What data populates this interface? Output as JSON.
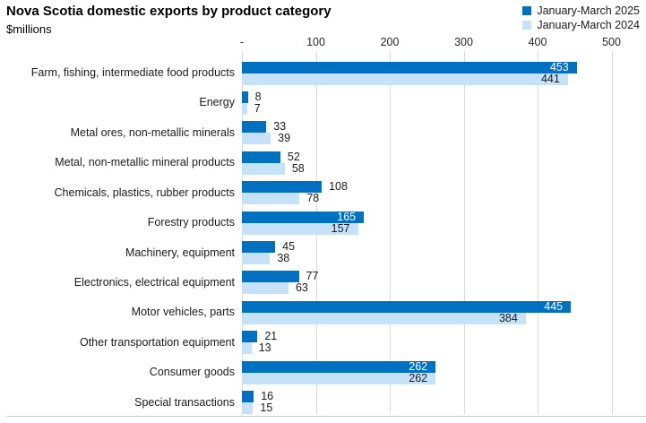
{
  "header": {
    "title": "Nova Scotia domestic exports by product category",
    "subtitle": "$millions"
  },
  "colors": {
    "series_2025": "#0070C0",
    "series_2024": "#C6E2F8",
    "gridline": "#D9D9D9",
    "axis_line": "#C9C9C9"
  },
  "chart_data": {
    "type": "bar",
    "orientation": "horizontal",
    "title": "Nova Scotia domestic exports by product category",
    "subtitle": "$millions",
    "xlabel": "",
    "ylabel": "",
    "unit": "$millions",
    "grid": true,
    "legend_position": "top-right",
    "value_labels": true,
    "categories": [
      "Farm, fishing, intermediate food products",
      "Energy",
      "Metal ores, non-metallic minerals",
      "Metal, non-metallic mineral products",
      "Chemicals, plastics, rubber products",
      "Forestry products",
      "Machinery, equipment",
      "Electronics, electrical equipment",
      "Motor vehicles, parts",
      "Other transportation equipment",
      "Consumer goods",
      "Special transactions"
    ],
    "series": [
      {
        "name": "January-March 2025",
        "color": "#0070C0",
        "values": [
          453,
          8,
          33,
          52,
          108,
          165,
          45,
          77,
          445,
          21,
          262,
          16
        ]
      },
      {
        "name": "January-March 2024",
        "color": "#C6E2F8",
        "values": [
          441,
          7,
          39,
          58,
          78,
          157,
          38,
          63,
          384,
          13,
          262,
          15
        ]
      }
    ],
    "x_axis": {
      "ticks": [
        "-",
        "100",
        "200",
        "300",
        "400",
        "500"
      ],
      "tick_values": [
        0,
        100,
        200,
        300,
        400,
        500
      ],
      "min": 0,
      "max": 500
    }
  }
}
